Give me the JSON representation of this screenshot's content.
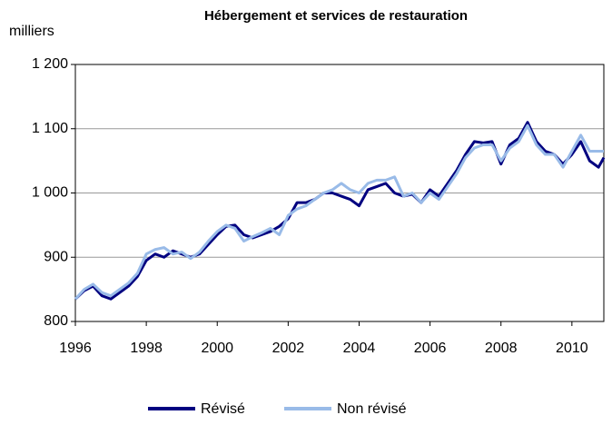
{
  "chart_data": {
    "type": "line",
    "title": "Hébergement et services de restauration",
    "y_label": "milliers",
    "x": [
      1996,
      1996.25,
      1996.5,
      1996.75,
      1997,
      1997.25,
      1997.5,
      1997.75,
      1998,
      1998.25,
      1998.5,
      1998.75,
      1999,
      1999.25,
      1999.5,
      1999.75,
      2000,
      2000.25,
      2000.5,
      2000.75,
      2001,
      2001.25,
      2001.5,
      2001.75,
      2002,
      2002.25,
      2002.5,
      2002.75,
      2003,
      2003.25,
      2003.5,
      2003.75,
      2004,
      2004.25,
      2004.5,
      2004.75,
      2005,
      2005.25,
      2005.5,
      2005.75,
      2006,
      2006.25,
      2006.5,
      2006.75,
      2007,
      2007.25,
      2007.5,
      2007.75,
      2008,
      2008.25,
      2008.5,
      2008.75,
      2009,
      2009.25,
      2009.5,
      2009.75,
      2010,
      2010.25,
      2010.5,
      2010.75,
      2010.9
    ],
    "series": [
      {
        "name": "Révisé",
        "color": "#000080",
        "values": [
          835,
          848,
          855,
          840,
          835,
          845,
          855,
          870,
          895,
          905,
          900,
          910,
          905,
          900,
          905,
          920,
          935,
          948,
          950,
          935,
          930,
          935,
          940,
          948,
          960,
          985,
          985,
          990,
          1000,
          1000,
          995,
          990,
          980,
          1005,
          1010,
          1015,
          1000,
          995,
          998,
          985,
          1005,
          995,
          1015,
          1035,
          1060,
          1080,
          1078,
          1080,
          1045,
          1075,
          1085,
          1110,
          1080,
          1065,
          1060,
          1045,
          1060,
          1080,
          1050,
          1040,
          1055
        ]
      },
      {
        "name": "Non révisé",
        "color": "#99bbe8",
        "values": [
          835,
          850,
          858,
          845,
          840,
          850,
          860,
          875,
          905,
          912,
          915,
          905,
          908,
          898,
          908,
          925,
          940,
          950,
          945,
          925,
          932,
          938,
          945,
          935,
          965,
          975,
          980,
          990,
          1000,
          1005,
          1015,
          1005,
          1000,
          1015,
          1020,
          1020,
          1025,
          995,
          1000,
          985,
          1000,
          990,
          1010,
          1030,
          1055,
          1070,
          1075,
          1075,
          1050,
          1070,
          1080,
          1105,
          1075,
          1060,
          1060,
          1040,
          1065,
          1090,
          1065,
          1065,
          1065
        ]
      }
    ],
    "xlim": [
      1996,
      2010.9
    ],
    "xticks": [
      1996,
      1998,
      2000,
      2002,
      2004,
      2006,
      2008,
      2010
    ],
    "ylim": [
      800,
      1200
    ],
    "yticks": [
      800,
      900,
      {
        "value": 1000,
        "label": "1 000"
      },
      {
        "value": 1100,
        "label": "1 100"
      },
      {
        "value": 1200,
        "label": "1 200"
      }
    ],
    "grid": true,
    "legend": "bottom"
  }
}
